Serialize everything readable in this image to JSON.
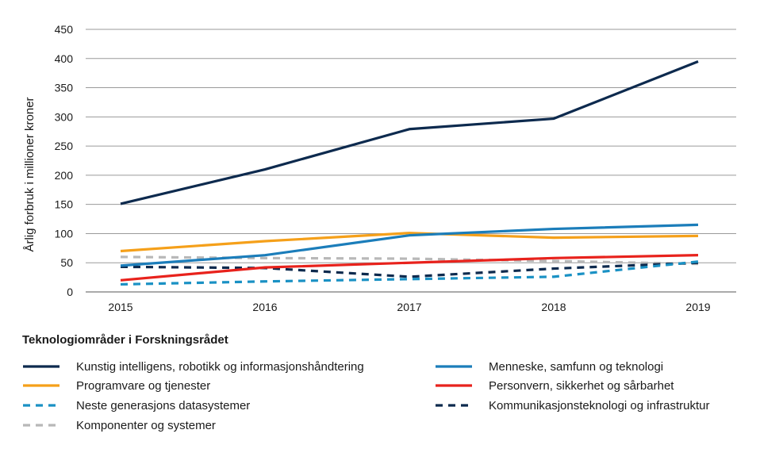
{
  "chart_data": {
    "type": "line",
    "title": "",
    "xlabel": "",
    "ylabel": "Årlig forbruk i millioner kroner",
    "categories": [
      "2015",
      "2016",
      "2017",
      "2018",
      "2019"
    ],
    "ylim": [
      0,
      450
    ],
    "yticks": [
      0,
      50,
      100,
      150,
      200,
      250,
      300,
      350,
      400,
      450
    ],
    "grid": true,
    "legend_title": "Teknologiområder i Forskningsrådet",
    "legend_position": "bottom",
    "series": [
      {
        "name": "Kunstig intelligens, robotikk og informasjonshåndtering",
        "color": "#0d2a4e",
        "dash": "solid",
        "values": [
          151,
          210,
          279,
          297,
          395
        ]
      },
      {
        "name": "Menneske, samfunn og teknologi",
        "color": "#1b7dba",
        "dash": "solid",
        "values": [
          45,
          63,
          97,
          108,
          115
        ]
      },
      {
        "name": "Programvare og tjenester",
        "color": "#f5a01a",
        "dash": "solid",
        "values": [
          70,
          87,
          101,
          93,
          96
        ]
      },
      {
        "name": "Personvern, sikkerhet og sårbarhet",
        "color": "#e8221c",
        "dash": "solid",
        "values": [
          20,
          42,
          50,
          58,
          63
        ]
      },
      {
        "name": "Neste generasjons datasystemer",
        "color": "#1a91c4",
        "dash": "dashed",
        "values": [
          13,
          18,
          22,
          26,
          52
        ]
      },
      {
        "name": "Kommunikasjonsteknologi og infrastruktur",
        "color": "#0d2a4e",
        "dash": "dashed",
        "values": [
          43,
          41,
          26,
          40,
          50
        ]
      },
      {
        "name": "Komponenter og systemer",
        "color": "#b8b8b8",
        "dash": "dashed",
        "values": [
          60,
          58,
          57,
          53,
          48
        ]
      }
    ]
  }
}
